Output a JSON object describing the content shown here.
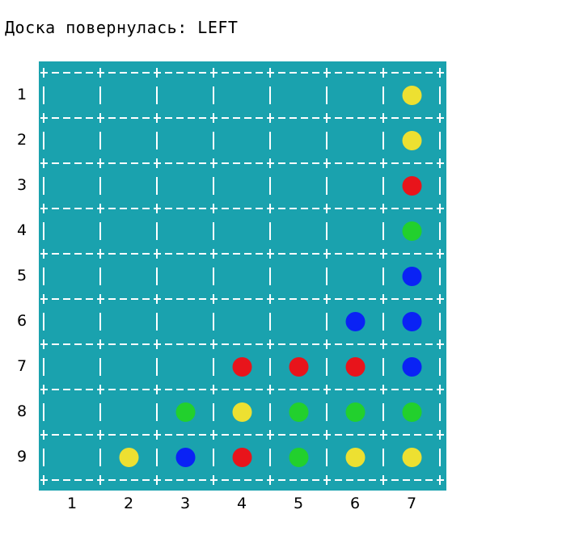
{
  "status": {
    "text": "Доска повернулась: LEFT"
  },
  "board": {
    "rows": [
      "1",
      "2",
      "3",
      "4",
      "5",
      "6",
      "7",
      "8",
      "9"
    ],
    "cols": [
      "1",
      "2",
      "3",
      "4",
      "5",
      "6",
      "7"
    ],
    "colors": {
      "background": "#1aa2ae",
      "yellow": "#ede031",
      "red": "#e8141b",
      "green": "#22d02d",
      "blue": "#0a22f5"
    },
    "pieces": [
      {
        "row": 1,
        "col": 7,
        "color": "yellow"
      },
      {
        "row": 2,
        "col": 7,
        "color": "yellow"
      },
      {
        "row": 3,
        "col": 7,
        "color": "red"
      },
      {
        "row": 4,
        "col": 7,
        "color": "green"
      },
      {
        "row": 5,
        "col": 7,
        "color": "blue"
      },
      {
        "row": 6,
        "col": 6,
        "color": "blue"
      },
      {
        "row": 6,
        "col": 7,
        "color": "blue"
      },
      {
        "row": 7,
        "col": 4,
        "color": "red"
      },
      {
        "row": 7,
        "col": 5,
        "color": "red"
      },
      {
        "row": 7,
        "col": 6,
        "color": "red"
      },
      {
        "row": 7,
        "col": 7,
        "color": "blue"
      },
      {
        "row": 8,
        "col": 3,
        "color": "green"
      },
      {
        "row": 8,
        "col": 4,
        "color": "yellow"
      },
      {
        "row": 8,
        "col": 5,
        "color": "green"
      },
      {
        "row": 8,
        "col": 6,
        "color": "green"
      },
      {
        "row": 8,
        "col": 7,
        "color": "green"
      },
      {
        "row": 9,
        "col": 2,
        "color": "yellow"
      },
      {
        "row": 9,
        "col": 3,
        "color": "blue"
      },
      {
        "row": 9,
        "col": 4,
        "color": "red"
      },
      {
        "row": 9,
        "col": 5,
        "color": "green"
      },
      {
        "row": 9,
        "col": 6,
        "color": "yellow"
      },
      {
        "row": 9,
        "col": 7,
        "color": "yellow"
      }
    ]
  }
}
